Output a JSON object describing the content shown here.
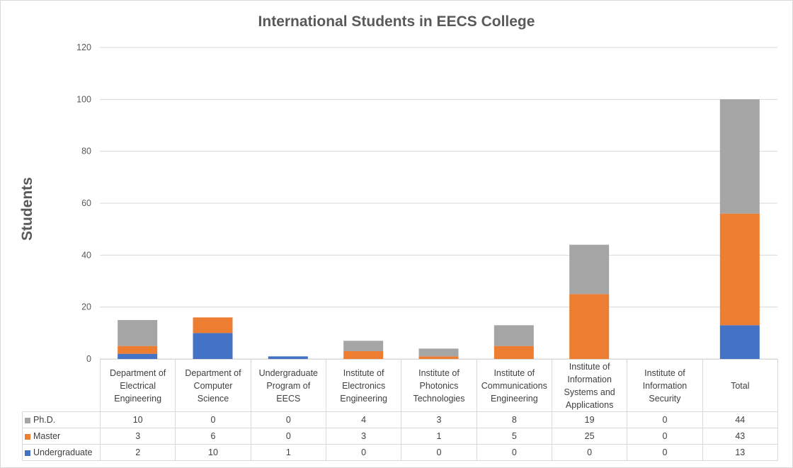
{
  "chart_data": {
    "type": "bar",
    "stacked": true,
    "title": "International Students in EECS College",
    "xlabel": "",
    "ylabel": "Students",
    "ylim": [
      0,
      120
    ],
    "yticks": [
      "0",
      "20",
      "40",
      "60",
      "80",
      "100",
      "120"
    ],
    "grid": true,
    "legend": "table-bottom",
    "categories": [
      "Department of Electrical Engineering",
      "Department of Computer Science",
      "Undergraduate Program of EECS",
      "Institute of Electronics Engineering",
      "Institute of Photonics Technologies",
      "Institute of Communications Engineering",
      "Institute of Information Systems and Applications",
      "Institute of Information Security",
      "Total"
    ],
    "series": [
      {
        "name": "Undergraduate",
        "color": "#4472c4",
        "values": [
          2,
          10,
          1,
          0,
          0,
          0,
          0,
          0,
          13
        ]
      },
      {
        "name": "Master",
        "color": "#ed7d31",
        "values": [
          3,
          6,
          0,
          3,
          1,
          5,
          25,
          0,
          43
        ]
      },
      {
        "name": "Ph.D.",
        "color": "#a5a5a5",
        "values": [
          10,
          0,
          0,
          4,
          3,
          8,
          19,
          0,
          44
        ]
      }
    ]
  }
}
